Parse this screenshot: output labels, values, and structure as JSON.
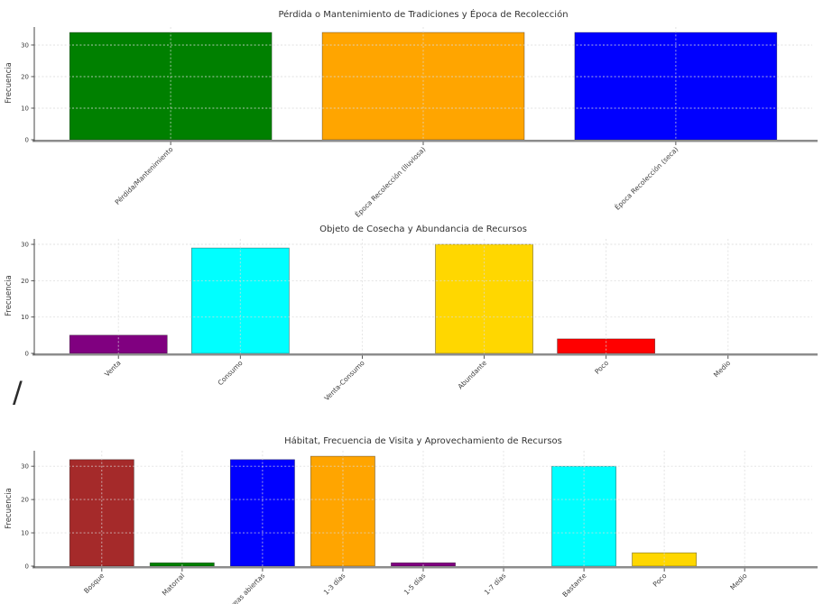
{
  "page": {
    "background": "#ffffff",
    "stray_mark": "/"
  },
  "chart_data": [
    {
      "type": "bar",
      "title": "Pérdida o Mantenimiento de Tradiciones y Época de Recolección",
      "xlabel": "",
      "ylabel": "Frecuencia",
      "categories": [
        "Pérdida/Mantenimiento",
        "Época Recolección (lluviosa)",
        "Época Recolección (seca)"
      ],
      "values": [
        34,
        34,
        34
      ],
      "colors": [
        "#008000",
        "#FFA500",
        "#0000FF"
      ],
      "yticks": [
        0,
        10,
        20,
        30
      ],
      "ylim": [
        0,
        35.7
      ],
      "grid": true,
      "legend": "none",
      "bar_width_fraction": 0.8,
      "tick_label_rotation": 45
    },
    {
      "type": "bar",
      "title": "Objeto de Cosecha y Abundancia de Recursos",
      "xlabel": "",
      "ylabel": "Frecuencia",
      "categories": [
        "Venta",
        "Consumo",
        "Venta-Consumo",
        "Abundante",
        "Poco",
        "Medio"
      ],
      "values": [
        5,
        29,
        0,
        30,
        4,
        0
      ],
      "colors": [
        "#800080",
        "#00FFFF",
        "#808080",
        "#FFD700",
        "#FF0000",
        "#808080"
      ],
      "yticks": [
        0,
        10,
        20,
        30
      ],
      "ylim": [
        0,
        31.5
      ],
      "grid": true,
      "legend": "none",
      "bar_width_fraction": 0.8,
      "tick_label_rotation": 45
    },
    {
      "type": "bar",
      "title": "Hábitat, Frecuencia de Visita y Aprovechamiento de Recursos",
      "xlabel": "",
      "ylabel": "Frecuencia",
      "categories": [
        "Bosque",
        "Matorral",
        "Áreas abiertas",
        "1-3 días",
        "1-5 días",
        "1-7 días",
        "Bastante",
        "Poco",
        "Medio"
      ],
      "values": [
        32,
        1,
        32,
        33,
        1,
        0,
        30,
        4,
        0
      ],
      "colors": [
        "#A52A2A",
        "#008000",
        "#0000FF",
        "#FFA500",
        "#800080",
        "#808080",
        "#00FFFF",
        "#FFD700",
        "#808080"
      ],
      "yticks": [
        0,
        10,
        20,
        30
      ],
      "ylim": [
        0,
        34.65
      ],
      "grid": true,
      "legend": "none",
      "bar_width_fraction": 0.8,
      "tick_label_rotation": 45
    }
  ]
}
